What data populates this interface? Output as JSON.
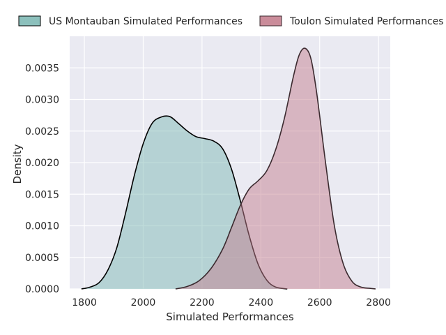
{
  "chart_data": {
    "type": "area",
    "title": "",
    "xlabel": "Simulated Performances",
    "ylabel": "Density",
    "xlim": [
      1750,
      2840
    ],
    "ylim": [
      0,
      0.004
    ],
    "xticks": [
      1800,
      2000,
      2200,
      2400,
      2600,
      2800
    ],
    "yticks": [
      "0.0000",
      "0.0005",
      "0.0010",
      "0.0015",
      "0.0020",
      "0.0025",
      "0.0030",
      "0.0035"
    ],
    "grid": true,
    "legend_placement": "top, above plot",
    "series": [
      {
        "name": "US Montauban Simulated Performances",
        "fill_color": "#7fb9b5",
        "line_color": "#000000",
        "x": [
          1790,
          1820,
          1850,
          1880,
          1910,
          1940,
          1970,
          2000,
          2030,
          2060,
          2090,
          2120,
          2150,
          2180,
          2210,
          2240,
          2270,
          2300,
          2330,
          2360,
          2390,
          2420,
          2450,
          2490
        ],
        "y": [
          0.0,
          3e-05,
          0.0001,
          0.0003,
          0.00065,
          0.0012,
          0.0018,
          0.0023,
          0.00262,
          0.00272,
          0.00273,
          0.00262,
          0.0025,
          0.00241,
          0.00238,
          0.00234,
          0.00222,
          0.0019,
          0.0014,
          0.00085,
          0.0004,
          0.00014,
          3e-05,
          0.0
        ]
      },
      {
        "name": "Toulon Simulated Performances",
        "fill_color": "#c4808f",
        "line_color": "#3b2a2f",
        "x": [
          2110,
          2150,
          2190,
          2230,
          2270,
          2300,
          2330,
          2360,
          2390,
          2420,
          2450,
          2480,
          2510,
          2530,
          2550,
          2570,
          2590,
          2620,
          2650,
          2680,
          2710,
          2740,
          2770,
          2790
        ],
        "y": [
          0.0,
          4e-05,
          0.00013,
          0.00032,
          0.00063,
          0.00097,
          0.00132,
          0.00158,
          0.00171,
          0.00187,
          0.0022,
          0.0027,
          0.00335,
          0.0037,
          0.00381,
          0.00365,
          0.0031,
          0.002,
          0.001,
          0.0004,
          0.00012,
          3e-05,
          1e-05,
          0.0
        ]
      }
    ]
  }
}
